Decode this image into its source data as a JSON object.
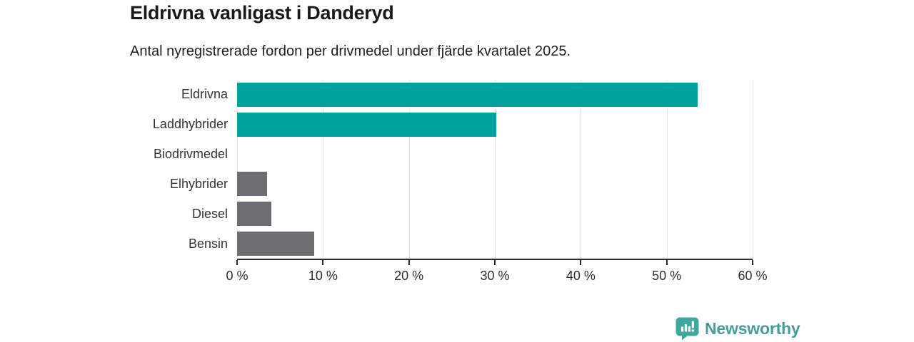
{
  "header": {
    "title": "Eldrivna vanligast i Danderyd",
    "subtitle": "Antal nyregistrerade fordon per drivmedel under fjärde kvartalet 2025."
  },
  "chart_data": {
    "type": "bar",
    "orientation": "horizontal",
    "title": "Eldrivna vanligast i Danderyd",
    "subtitle": "Antal nyregistrerade fordon per drivmedel under fjärde kvartalet 2025.",
    "categories": [
      "Eldrivna",
      "Laddhybrider",
      "Biodrivmedel",
      "Elhybrider",
      "Diesel",
      "Bensin"
    ],
    "values": [
      53.6,
      30.2,
      0,
      3.5,
      4.0,
      9.0
    ],
    "unit": "%",
    "bar_colors": [
      "#00A39B",
      "#00A39B",
      "#6D6D72",
      "#6D6D72",
      "#6D6D72",
      "#6D6D72"
    ],
    "xlabel": "",
    "ylabel": "",
    "xlim": [
      0,
      60
    ],
    "xtick_values": [
      0,
      10,
      20,
      30,
      40,
      50,
      60
    ],
    "xtick_labels": [
      "0 %",
      "10 %",
      "20 %",
      "30 %",
      "40 %",
      "50 %",
      "60 %"
    ],
    "grid": "vertical-only",
    "legend": "none"
  },
  "branding": {
    "logo_text": "Newsworthy",
    "logo_text_color": "#4A9B9B",
    "logo_mark_color": "#3EA79E"
  },
  "colors": {
    "accent_teal": "#00A39B",
    "neutral_gray": "#6D6D72",
    "axis": "#2B2B2B",
    "gridline": "#E7E7E7",
    "background": "#FFFFFF"
  }
}
